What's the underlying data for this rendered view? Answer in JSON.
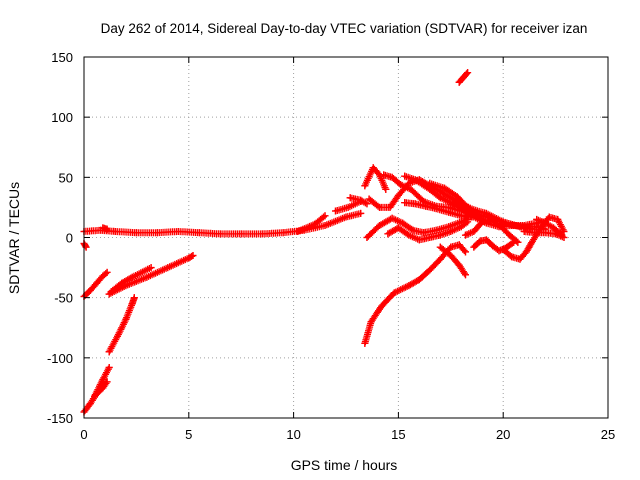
{
  "chart_data": {
    "type": "scatter",
    "title": "Day 262 of 2014, Sidereal Day-to-day VTEC variation (SDTVAR) for receiver izan",
    "xlabel": "GPS time / hours",
    "ylabel": "SDTVAR / TECUs",
    "xlim": [
      0,
      25
    ],
    "ylim": [
      -150,
      150
    ],
    "xticks": [
      0,
      5,
      10,
      15,
      20,
      25
    ],
    "yticks": [
      -150,
      -100,
      -50,
      0,
      50,
      100,
      150
    ],
    "xtick_labels": [
      "0",
      "5",
      "10",
      "15",
      "20",
      "25"
    ],
    "ytick_labels": [
      "-150",
      "-100",
      "-50",
      "0",
      "50",
      "100",
      "150"
    ],
    "grid": true,
    "marker": "+",
    "color": "#ff0000",
    "series": [
      {
        "name": "s01",
        "points": [
          [
            0.0,
            5
          ],
          [
            0.8,
            6
          ],
          [
            1.5,
            5
          ],
          [
            2.5,
            4
          ],
          [
            3.5,
            4
          ],
          [
            4.5,
            5
          ],
          [
            5.5,
            4
          ],
          [
            6.5,
            3
          ],
          [
            7.5,
            3
          ],
          [
            8.5,
            3
          ],
          [
            9.5,
            4
          ],
          [
            10.5,
            6
          ],
          [
            11.5,
            10
          ],
          [
            12.5,
            17
          ],
          [
            13.2,
            20
          ]
        ]
      },
      {
        "name": "s02",
        "points": [
          [
            0.0,
            -5
          ],
          [
            0.1,
            -8
          ]
        ]
      },
      {
        "name": "s03",
        "points": [
          [
            0.0,
            -49
          ],
          [
            0.3,
            -44
          ],
          [
            0.6,
            -38
          ],
          [
            0.9,
            -32
          ],
          [
            1.1,
            -29
          ]
        ]
      },
      {
        "name": "s04",
        "points": [
          [
            1.2,
            -47
          ],
          [
            2.0,
            -40
          ],
          [
            3.0,
            -33
          ],
          [
            4.0,
            -25
          ],
          [
            5.0,
            -17
          ],
          [
            5.2,
            -15
          ]
        ]
      },
      {
        "name": "s05",
        "points": [
          [
            1.3,
            -45
          ],
          [
            1.8,
            -38
          ],
          [
            2.3,
            -33
          ],
          [
            3.2,
            -25
          ]
        ]
      },
      {
        "name": "s06",
        "points": [
          [
            0.0,
            -145
          ],
          [
            0.3,
            -138
          ],
          [
            0.6,
            -130
          ],
          [
            0.9,
            -125
          ],
          [
            1.1,
            -120
          ]
        ]
      },
      {
        "name": "s07",
        "points": [
          [
            0.5,
            -132
          ],
          [
            0.9,
            -118
          ],
          [
            1.2,
            -108
          ]
        ]
      },
      {
        "name": "s08",
        "points": [
          [
            1.2,
            -95
          ],
          [
            1.6,
            -82
          ],
          [
            2.0,
            -68
          ],
          [
            2.3,
            -55
          ],
          [
            2.4,
            -50
          ]
        ]
      },
      {
        "name": "s09",
        "points": [
          [
            0.9,
            8
          ],
          [
            1.1,
            7
          ]
        ]
      },
      {
        "name": "s10",
        "points": [
          [
            10.2,
            5
          ],
          [
            11.0,
            11
          ],
          [
            11.5,
            18
          ]
        ]
      },
      {
        "name": "s11",
        "points": [
          [
            12.0,
            22
          ],
          [
            12.6,
            25
          ],
          [
            13.2,
            30
          ]
        ]
      },
      {
        "name": "s12",
        "points": [
          [
            12.7,
            33
          ],
          [
            13.2,
            31
          ],
          [
            13.5,
            28
          ]
        ]
      },
      {
        "name": "s13",
        "points": [
          [
            13.4,
            -88
          ],
          [
            13.7,
            -70
          ],
          [
            14.2,
            -57
          ],
          [
            14.8,
            -46
          ],
          [
            15.5,
            -40
          ],
          [
            16.0,
            -35
          ],
          [
            16.5,
            -27
          ],
          [
            17.0,
            -18
          ],
          [
            17.5,
            -8
          ],
          [
            17.9,
            -6
          ],
          [
            18.2,
            -12
          ]
        ]
      },
      {
        "name": "s14",
        "points": [
          [
            17.0,
            -8
          ],
          [
            17.5,
            -15
          ],
          [
            17.9,
            -23
          ],
          [
            18.2,
            -31
          ]
        ]
      },
      {
        "name": "s15",
        "points": [
          [
            13.4,
            43
          ],
          [
            13.8,
            58
          ],
          [
            14.1,
            52
          ],
          [
            14.4,
            40
          ]
        ]
      },
      {
        "name": "s16",
        "points": [
          [
            13.5,
            0
          ],
          [
            14.1,
            10
          ],
          [
            14.7,
            16
          ],
          [
            15.2,
            12
          ],
          [
            15.7,
            6
          ],
          [
            16.2,
            4
          ],
          [
            16.8,
            6
          ],
          [
            17.4,
            9
          ],
          [
            18.0,
            13
          ],
          [
            18.3,
            15
          ]
        ]
      },
      {
        "name": "s17",
        "points": [
          [
            14.5,
            3
          ],
          [
            15.0,
            8
          ],
          [
            15.5,
            2
          ],
          [
            16.0,
            -2
          ],
          [
            16.5,
            0
          ],
          [
            17.0,
            2
          ],
          [
            17.5,
            5
          ],
          [
            18.0,
            9
          ],
          [
            18.3,
            13
          ]
        ]
      },
      {
        "name": "s18",
        "points": [
          [
            13.6,
            32
          ],
          [
            14.1,
            25
          ],
          [
            14.6,
            25
          ],
          [
            15.0,
            35
          ],
          [
            15.5,
            45
          ],
          [
            16.0,
            48
          ],
          [
            16.5,
            43
          ],
          [
            17.0,
            38
          ],
          [
            17.5,
            33
          ],
          [
            18.0,
            28
          ],
          [
            18.6,
            23
          ],
          [
            19.2,
            20
          ],
          [
            20.0,
            13
          ],
          [
            20.8,
            9
          ],
          [
            21.4,
            7
          ]
        ]
      },
      {
        "name": "s19",
        "points": [
          [
            14.3,
            52
          ],
          [
            14.7,
            50
          ],
          [
            15.1,
            44
          ],
          [
            15.6,
            40
          ],
          [
            16.2,
            30
          ],
          [
            16.8,
            26
          ],
          [
            17.4,
            25
          ],
          [
            18.0,
            22
          ]
        ]
      },
      {
        "name": "s20",
        "points": [
          [
            15.3,
            29
          ],
          [
            15.8,
            28
          ],
          [
            16.3,
            26
          ],
          [
            16.8,
            24
          ],
          [
            17.4,
            21
          ],
          [
            18.0,
            18
          ],
          [
            18.5,
            17
          ]
        ]
      },
      {
        "name": "s21",
        "points": [
          [
            15.3,
            51
          ],
          [
            15.8,
            48
          ],
          [
            16.5,
            40
          ],
          [
            17.0,
            33
          ],
          [
            17.6,
            28
          ],
          [
            18.2,
            22
          ],
          [
            18.8,
            18
          ]
        ]
      },
      {
        "name": "s22",
        "points": [
          [
            16.5,
            45
          ],
          [
            17.2,
            41
          ],
          [
            17.8,
            34
          ],
          [
            18.3,
            25
          ],
          [
            18.7,
            18
          ],
          [
            19.0,
            14
          ]
        ]
      },
      {
        "name": "s23",
        "points": [
          [
            18.2,
            21
          ],
          [
            18.8,
            19
          ],
          [
            19.4,
            16
          ],
          [
            20.1,
            12
          ],
          [
            20.8,
            9
          ],
          [
            21.5,
            9
          ],
          [
            22.0,
            7
          ]
        ]
      },
      {
        "name": "s24",
        "points": [
          [
            18.2,
            2
          ],
          [
            18.6,
            5
          ],
          [
            19.0,
            13
          ],
          [
            19.4,
            15
          ],
          [
            19.9,
            9
          ],
          [
            20.3,
            2
          ],
          [
            20.7,
            -4
          ]
        ]
      },
      {
        "name": "s25",
        "points": [
          [
            18.6,
            -8
          ],
          [
            18.9,
            -3
          ],
          [
            19.2,
            -2
          ],
          [
            19.5,
            -7
          ],
          [
            19.8,
            -11
          ],
          [
            20.1,
            -9
          ],
          [
            20.5,
            -4
          ]
        ]
      },
      {
        "name": "s26",
        "points": [
          [
            18.0,
            18
          ],
          [
            18.6,
            17
          ],
          [
            19.2,
            12
          ],
          [
            19.8,
            9
          ],
          [
            20.4,
            10
          ],
          [
            21.0,
            10
          ],
          [
            21.6,
            12
          ],
          [
            22.0,
            13
          ]
        ]
      },
      {
        "name": "s27",
        "points": [
          [
            20.0,
            -10
          ],
          [
            20.4,
            -16
          ],
          [
            20.8,
            -18
          ],
          [
            21.1,
            -12
          ],
          [
            21.4,
            -3
          ],
          [
            21.8,
            8
          ],
          [
            22.2,
            17
          ],
          [
            22.6,
            15
          ],
          [
            22.9,
            5
          ]
        ]
      },
      {
        "name": "s28",
        "points": [
          [
            21.6,
            15
          ],
          [
            22.0,
            12
          ],
          [
            22.4,
            8
          ],
          [
            22.8,
            2
          ]
        ]
      },
      {
        "name": "s29",
        "points": [
          [
            21.0,
            5
          ],
          [
            21.5,
            4
          ],
          [
            22.0,
            4
          ],
          [
            22.5,
            3
          ],
          [
            22.9,
            0
          ]
        ]
      },
      {
        "name": "s30",
        "points": [
          [
            17.9,
            129
          ],
          [
            18.1,
            133
          ],
          [
            18.3,
            137
          ]
        ]
      }
    ]
  }
}
